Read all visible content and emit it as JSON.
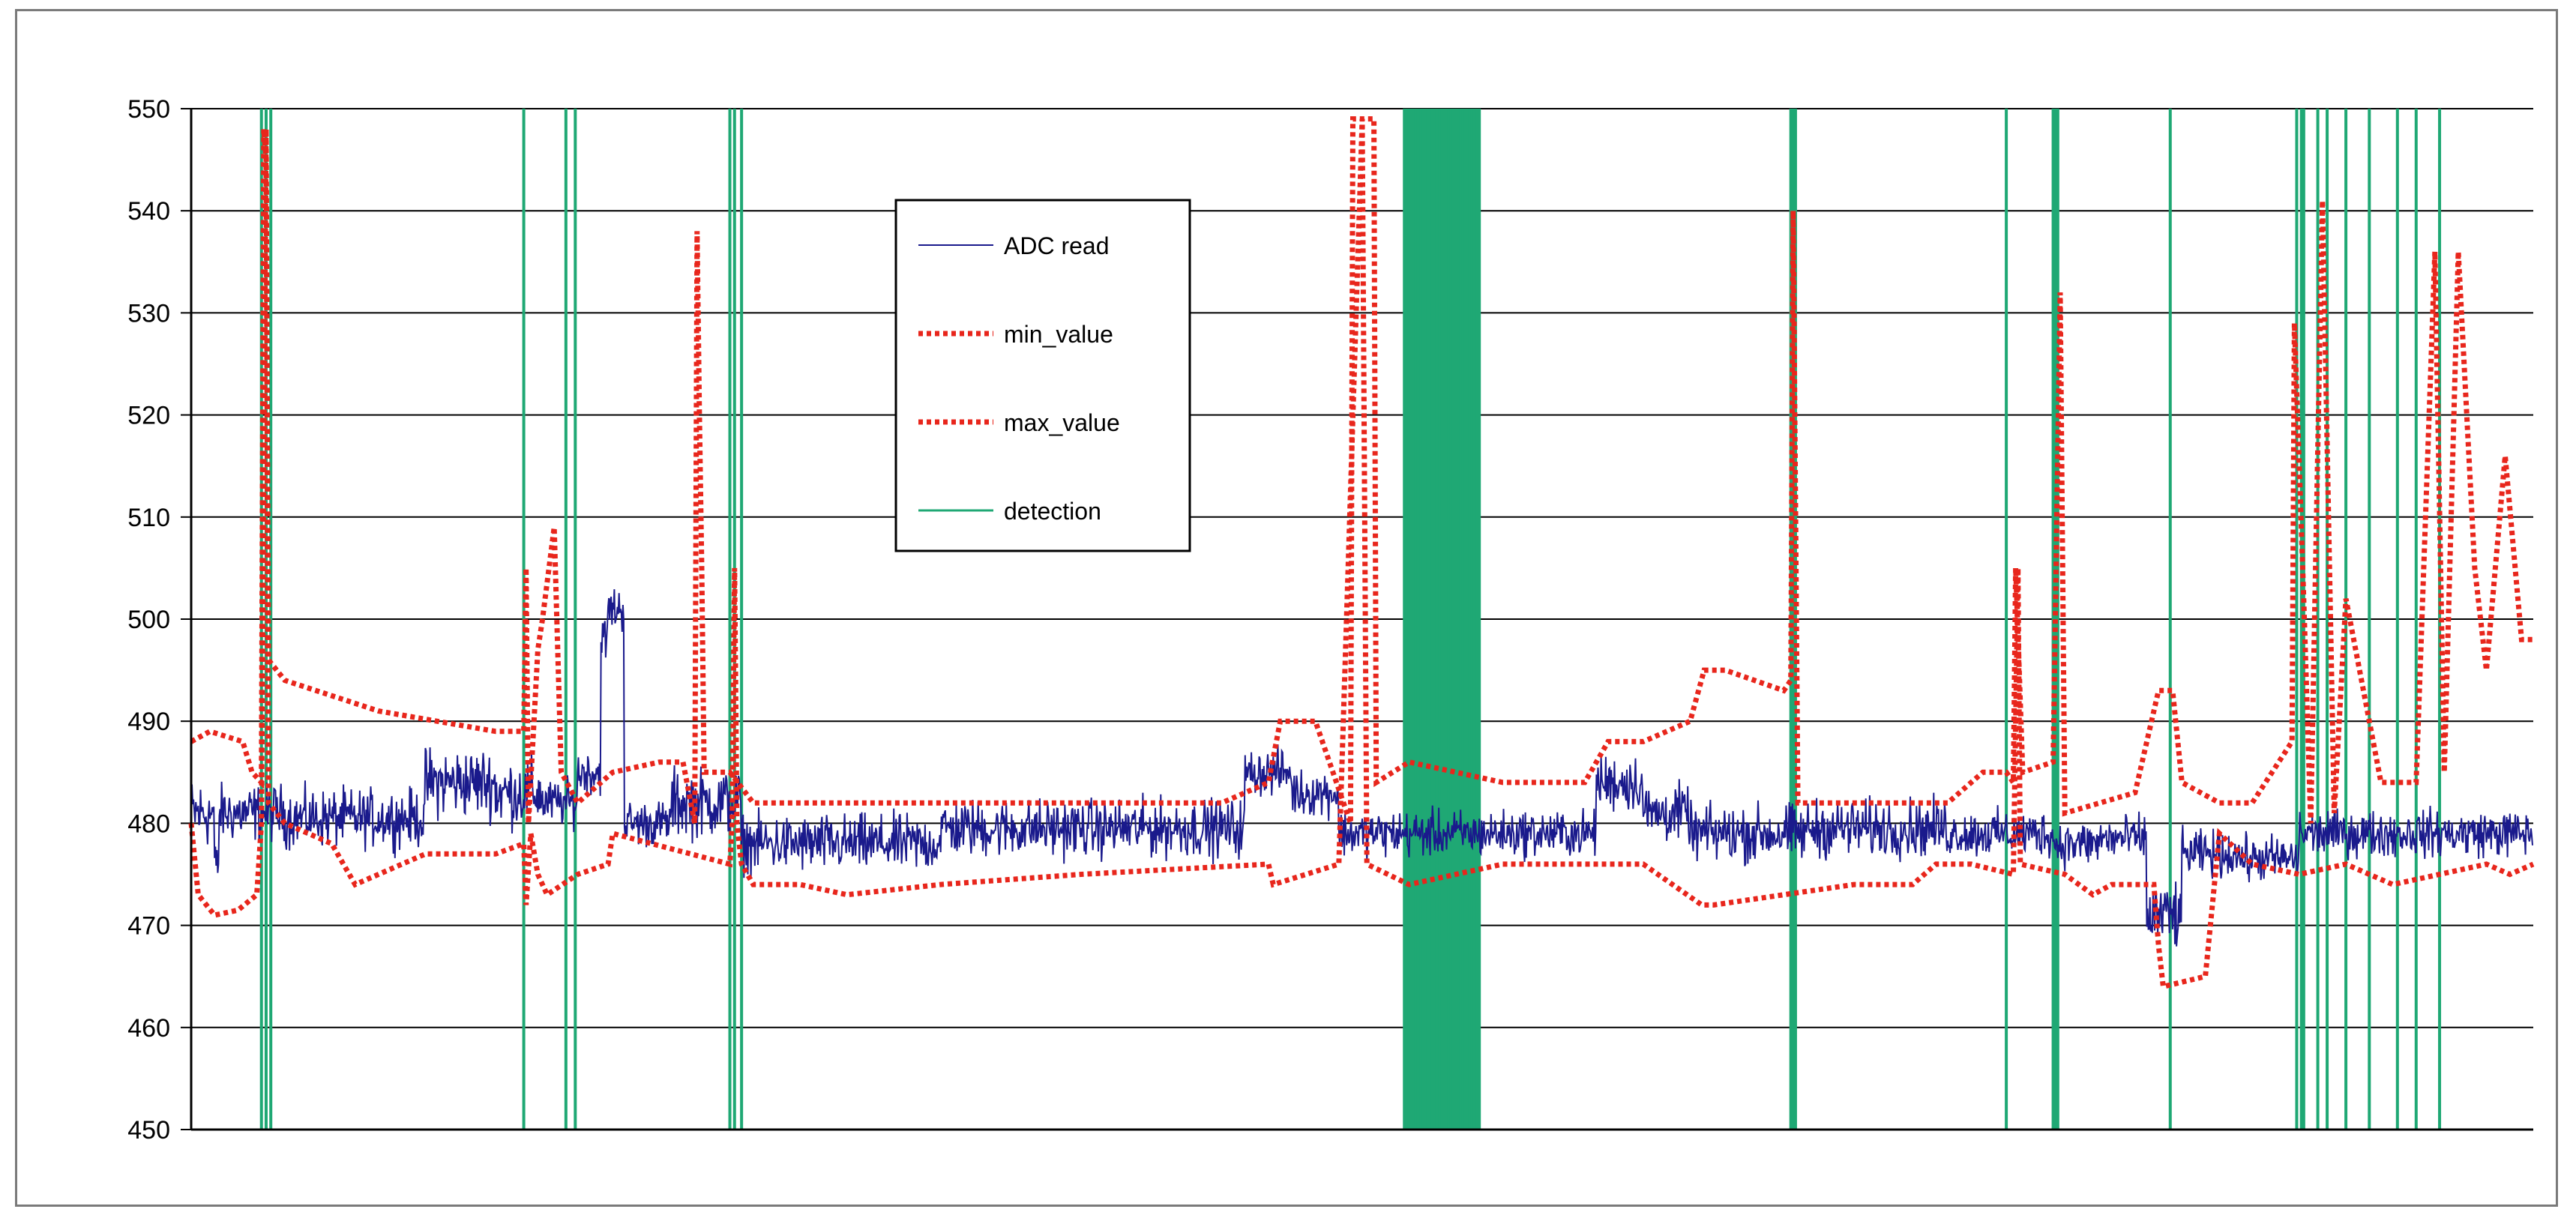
{
  "chart_data": {
    "type": "line",
    "title": "",
    "xlabel": "",
    "ylabel": "",
    "ylim": [
      450,
      550
    ],
    "yticks": [
      450,
      460,
      470,
      480,
      490,
      500,
      510,
      520,
      530,
      540,
      550
    ],
    "grid": "horizontal",
    "legend_position": "top-center",
    "x_samples": 1000,
    "series": [
      {
        "name": "ADC read",
        "color": "#1a1a8c",
        "style": "solid",
        "segments": [
          {
            "x": [
              0,
              10
            ],
            "level": 481,
            "noise": 3
          },
          {
            "x": [
              10,
              12
            ],
            "level": 476,
            "noise": 2
          },
          {
            "x": [
              12,
              40
            ],
            "level": 481,
            "noise": 2.5
          },
          {
            "x": [
              40,
              100
            ],
            "level": 480.5,
            "noise": 2.5
          },
          {
            "x": [
              100,
              130
            ],
            "level": 484,
            "noise": 3
          },
          {
            "x": [
              130,
              150
            ],
            "level": 483,
            "noise": 3
          },
          {
            "x": [
              150,
              165
            ],
            "level": 482,
            "noise": 2
          },
          {
            "x": [
              165,
              175
            ],
            "level": 485,
            "noise": 2
          },
          {
            "x": [
              175,
              178
            ],
            "level": 498,
            "noise": 2
          },
          {
            "x": [
              178,
              185
            ],
            "level": 501,
            "noise": 2
          },
          {
            "x": [
              185,
              205
            ],
            "level": 480,
            "noise": 2
          },
          {
            "x": [
              205,
              235
            ],
            "level": 482,
            "noise": 3
          },
          {
            "x": [
              235,
              320
            ],
            "level": 478,
            "noise": 2.5
          },
          {
            "x": [
              320,
              450
            ],
            "level": 479.5,
            "noise": 2.5
          },
          {
            "x": [
              450,
              470
            ],
            "level": 485,
            "noise": 2
          },
          {
            "x": [
              470,
              490
            ],
            "level": 483,
            "noise": 2
          },
          {
            "x": [
              490,
              600
            ],
            "level": 479,
            "noise": 2
          },
          {
            "x": [
              600,
              620
            ],
            "level": 484,
            "noise": 2.5
          },
          {
            "x": [
              620,
              640
            ],
            "level": 481,
            "noise": 2.5
          },
          {
            "x": [
              640,
              690
            ],
            "level": 479,
            "noise": 2.5
          },
          {
            "x": [
              690,
              750
            ],
            "level": 479.5,
            "noise": 2.5
          },
          {
            "x": [
              750,
              795
            ],
            "level": 479,
            "noise": 2
          },
          {
            "x": [
              795,
              815
            ],
            "level": 478,
            "noise": 2
          },
          {
            "x": [
              815,
              835
            ],
            "level": 478.5,
            "noise": 2
          },
          {
            "x": [
              835,
              850
            ],
            "level": 471,
            "noise": 3
          },
          {
            "x": [
              850,
              875
            ],
            "level": 477,
            "noise": 2
          },
          {
            "x": [
              875,
              900
            ],
            "level": 476.5,
            "noise": 2
          },
          {
            "x": [
              900,
              1000
            ],
            "level": 479,
            "noise": 2
          }
        ]
      },
      {
        "name": "min_value",
        "color": "#e8261c",
        "style": "dotted",
        "points": [
          [
            0,
            480
          ],
          [
            3,
            473
          ],
          [
            10,
            471
          ],
          [
            20,
            471.5
          ],
          [
            28,
            473
          ],
          [
            30,
            480
          ],
          [
            32,
            548
          ],
          [
            33,
            482
          ],
          [
            40,
            480
          ],
          [
            60,
            478
          ],
          [
            70,
            474
          ],
          [
            100,
            477
          ],
          [
            130,
            477
          ],
          [
            142,
            478
          ],
          [
            143,
            472
          ],
          [
            145,
            479
          ],
          [
            148,
            475
          ],
          [
            152,
            473
          ],
          [
            165,
            475
          ],
          [
            178,
            476
          ],
          [
            180,
            479
          ],
          [
            230,
            476
          ],
          [
            231,
            480
          ],
          [
            232,
            505
          ],
          [
            233,
            480
          ],
          [
            235,
            476
          ],
          [
            240,
            474
          ],
          [
            260,
            474
          ],
          [
            280,
            473
          ],
          [
            320,
            474
          ],
          [
            380,
            475
          ],
          [
            460,
            476
          ],
          [
            462,
            474
          ],
          [
            490,
            476
          ],
          [
            500,
            549
          ],
          [
            502,
            476
          ],
          [
            520,
            474
          ],
          [
            560,
            476
          ],
          [
            620,
            476
          ],
          [
            645,
            472
          ],
          [
            650,
            472
          ],
          [
            680,
            473
          ],
          [
            710,
            474
          ],
          [
            735,
            474
          ],
          [
            745,
            476
          ],
          [
            760,
            476
          ],
          [
            778,
            475
          ],
          [
            780,
            505
          ],
          [
            781,
            476
          ],
          [
            800,
            475
          ],
          [
            812,
            473
          ],
          [
            820,
            474
          ],
          [
            838,
            474
          ],
          [
            840,
            468
          ],
          [
            842,
            464
          ],
          [
            860,
            465
          ],
          [
            866,
            479
          ],
          [
            880,
            476
          ],
          [
            900,
            475
          ],
          [
            920,
            476
          ],
          [
            940,
            474
          ],
          [
            960,
            475
          ],
          [
            980,
            476
          ],
          [
            990,
            475
          ],
          [
            1000,
            476
          ]
        ]
      },
      {
        "name": "max_value",
        "color": "#e8261c",
        "style": "dotted",
        "points": [
          [
            0,
            488
          ],
          [
            8,
            489
          ],
          [
            22,
            488
          ],
          [
            26,
            485
          ],
          [
            30,
            484
          ],
          [
            31,
            548
          ],
          [
            32,
            545
          ],
          [
            33,
            496
          ],
          [
            40,
            494
          ],
          [
            80,
            491
          ],
          [
            130,
            489
          ],
          [
            142,
            489
          ],
          [
            143,
            505
          ],
          [
            144,
            480
          ],
          [
            148,
            497
          ],
          [
            150,
            500
          ],
          [
            155,
            509
          ],
          [
            158,
            485
          ],
          [
            165,
            482
          ],
          [
            180,
            485
          ],
          [
            200,
            486
          ],
          [
            210,
            486
          ],
          [
            215,
            480
          ],
          [
            216,
            538
          ],
          [
            217,
            520
          ],
          [
            218,
            505
          ],
          [
            219,
            485
          ],
          [
            230,
            485
          ],
          [
            240,
            482
          ],
          [
            320,
            482
          ],
          [
            440,
            482
          ],
          [
            460,
            484
          ],
          [
            465,
            490
          ],
          [
            480,
            490
          ],
          [
            495,
            480
          ],
          [
            496,
            549
          ],
          [
            505,
            549
          ],
          [
            506,
            484
          ],
          [
            520,
            486
          ],
          [
            560,
            484
          ],
          [
            595,
            484
          ],
          [
            605,
            488
          ],
          [
            620,
            488
          ],
          [
            640,
            490
          ],
          [
            646,
            495
          ],
          [
            655,
            495
          ],
          [
            680,
            493
          ],
          [
            683,
            494
          ],
          [
            684,
            540
          ],
          [
            686,
            482
          ],
          [
            750,
            482
          ],
          [
            765,
            485
          ],
          [
            775,
            485
          ],
          [
            778,
            484
          ],
          [
            779,
            505
          ],
          [
            782,
            485
          ],
          [
            795,
            486
          ],
          [
            798,
            532
          ],
          [
            800,
            481
          ],
          [
            815,
            482
          ],
          [
            830,
            483
          ],
          [
            840,
            493
          ],
          [
            846,
            493
          ],
          [
            850,
            484
          ],
          [
            866,
            482
          ],
          [
            880,
            482
          ],
          [
            897,
            488
          ],
          [
            898,
            529
          ],
          [
            902,
            502
          ],
          [
            905,
            480
          ],
          [
            910,
            541
          ],
          [
            915,
            481
          ],
          [
            920,
            502
          ],
          [
            935,
            484
          ],
          [
            950,
            484
          ],
          [
            958,
            536
          ],
          [
            962,
            485
          ],
          [
            968,
            536
          ],
          [
            975,
            505
          ],
          [
            980,
            495
          ],
          [
            988,
            516
          ],
          [
            995,
            498
          ],
          [
            1000,
            498
          ]
        ]
      },
      {
        "name": "detection",
        "color": "#1fa874",
        "style": "vertical-lines",
        "x": [
          30,
          32,
          34,
          142,
          160,
          164,
          230,
          232,
          235,
          518,
          519,
          520,
          521,
          522,
          523,
          524,
          525,
          526,
          527,
          528,
          529,
          530,
          531,
          532,
          533,
          534,
          535,
          536,
          537,
          538,
          539,
          540,
          541,
          542,
          543,
          544,
          545,
          546,
          547,
          548,
          549,
          550,
          683,
          684,
          685,
          775,
          795,
          796,
          797,
          845,
          899,
          901,
          902,
          908,
          912,
          920,
          930,
          942,
          950,
          960
        ]
      }
    ]
  }
}
